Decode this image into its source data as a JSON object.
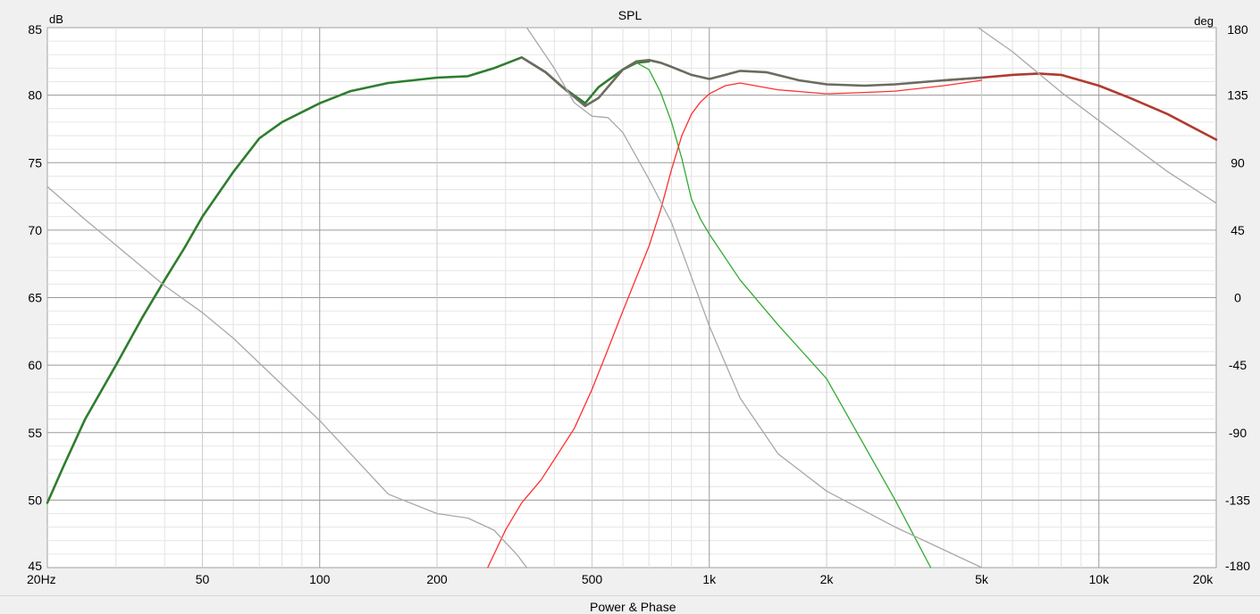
{
  "chart_data": {
    "type": "line",
    "title": "SPL",
    "y_unit_left": "dB",
    "y_unit_right": "deg",
    "x_scale": "log",
    "x_range": [
      20,
      20000
    ],
    "ylim": [
      45,
      85
    ],
    "y2lim": [
      -180,
      180
    ],
    "grid": true,
    "x_ticks": [
      {
        "value": 20,
        "label": "20Hz"
      },
      {
        "value": 50,
        "label": "50"
      },
      {
        "value": 100,
        "label": "100"
      },
      {
        "value": 200,
        "label": "200"
      },
      {
        "value": 500,
        "label": "500"
      },
      {
        "value": 1000,
        "label": "1k"
      },
      {
        "value": 2000,
        "label": "2k"
      },
      {
        "value": 5000,
        "label": "5k"
      },
      {
        "value": 10000,
        "label": "10k"
      },
      {
        "value": 20000,
        "label": "20k"
      }
    ],
    "y_ticks": [
      85,
      80,
      75,
      70,
      65,
      60,
      55,
      50,
      45
    ],
    "y2_ticks": [
      180,
      135,
      90,
      45,
      0,
      -45,
      -90,
      -135,
      -180
    ],
    "series": [
      {
        "color": "#2e7d2e",
        "axis": "left",
        "width": 2.6,
        "x": [
          20,
          22,
          25,
          30,
          35,
          40,
          45,
          50,
          60,
          70,
          80,
          100,
          120,
          150,
          200,
          240,
          280,
          330,
          380,
          420,
          480,
          520,
          600,
          650,
          700
        ],
        "y": [
          49.8,
          52.5,
          56,
          60,
          63.5,
          66.3,
          68.7,
          71,
          74.3,
          76.8,
          78,
          79.4,
          80.3,
          80.9,
          81.3,
          81.4,
          82,
          82.8,
          81.7,
          80.6,
          79.4,
          80.6,
          81.9,
          82.4,
          82.5
        ]
      },
      {
        "color": "#33aa33",
        "axis": "left",
        "width": 1.3,
        "x": [
          650,
          700,
          750,
          800,
          850,
          900,
          950,
          1000,
          1200,
          1500,
          2000,
          3000,
          3700
        ],
        "y": [
          82.4,
          81.9,
          80.2,
          78,
          75.3,
          72.3,
          70.8,
          69.7,
          66.3,
          63,
          59,
          50,
          45
        ]
      },
      {
        "color": "#ff3030",
        "axis": "left",
        "width": 1.3,
        "x": [
          270,
          300,
          330,
          370,
          400,
          450,
          500,
          550,
          600,
          650,
          700,
          750,
          800,
          850,
          900,
          950,
          1000,
          1100,
          1200,
          1500,
          2000,
          2500,
          3000,
          4000,
          5000
        ],
        "y": [
          45,
          47.8,
          49.8,
          51.5,
          53,
          55.3,
          58.2,
          61.2,
          64,
          66.5,
          68.8,
          71.5,
          74.5,
          77,
          78.6,
          79.5,
          80.1,
          80.7,
          80.9,
          80.4,
          80.1,
          80.2,
          80.3,
          80.7,
          81.1
        ]
      },
      {
        "color": "#b03a2e",
        "axis": "left",
        "width": 2.6,
        "x": [
          4000,
          5000,
          6000,
          7000,
          8000,
          10000,
          12000,
          15000,
          20000
        ],
        "y": [
          81.1,
          81.3,
          81.5,
          81.6,
          81.5,
          80.7,
          79.8,
          78.6,
          76.7
        ]
      },
      {
        "color": "#6b6b5f",
        "axis": "left",
        "width": 2.6,
        "x": [
          330,
          380,
          420,
          480,
          520,
          600,
          650,
          700,
          750,
          800,
          900,
          1000,
          1100,
          1200,
          1400,
          1700,
          2000,
          2500,
          3000,
          4000,
          5000
        ],
        "y": [
          82.8,
          81.7,
          80.6,
          79.2,
          79.8,
          81.9,
          82.5,
          82.6,
          82.4,
          82.1,
          81.5,
          81.2,
          81.5,
          81.8,
          81.7,
          81.1,
          80.8,
          80.7,
          80.8,
          81.1,
          81.3
        ]
      },
      {
        "color": "#a8a8a8",
        "axis": "right",
        "width": 1.3,
        "x": [
          20,
          25,
          30,
          40,
          50,
          60,
          80,
          100,
          150,
          200,
          240,
          280,
          320,
          340
        ],
        "y": [
          74,
          52,
          35,
          8,
          -10,
          -27,
          -58,
          -82,
          -131,
          -144,
          -147,
          -155,
          -171,
          -180
        ]
      },
      {
        "color": "#a8a8a8",
        "axis": "right",
        "width": 1.3,
        "x": [
          340,
          400,
          450,
          500,
          550,
          600,
          700,
          800,
          1000,
          1200,
          1500,
          2000,
          3000,
          5000
        ],
        "y": [
          180,
          153,
          130,
          121,
          120,
          110,
          79,
          50,
          -19,
          -67,
          -104,
          -129,
          -153,
          -180
        ]
      },
      {
        "color": "#a8a8a8",
        "axis": "right",
        "width": 1.3,
        "x": [
          4900,
          6000,
          8000,
          10000,
          15000,
          20000
        ],
        "y": [
          180,
          164,
          137,
          118,
          84,
          63
        ]
      }
    ]
  },
  "footer": {
    "title_partial": "Power & Phase"
  }
}
